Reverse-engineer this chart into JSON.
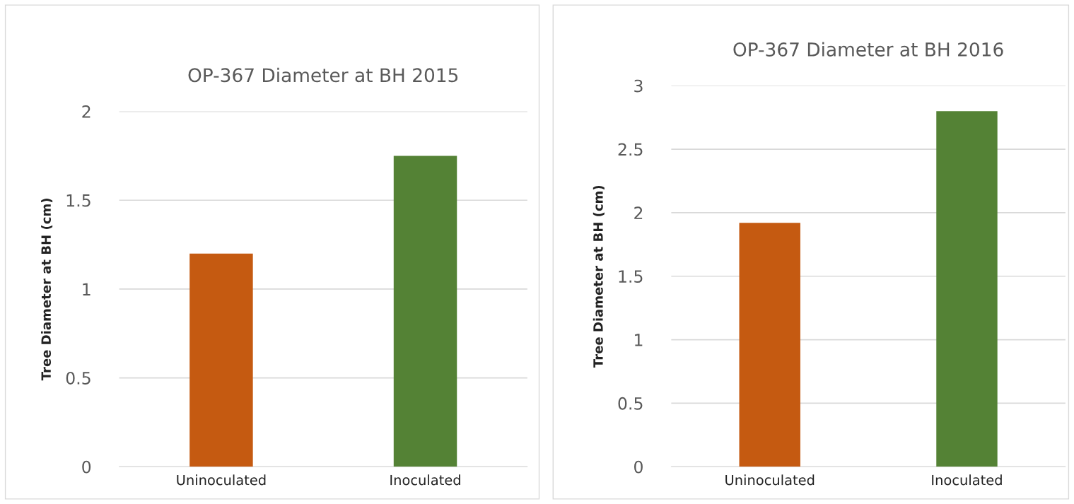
{
  "chart_data": [
    {
      "type": "bar",
      "title": "OP-367 Diameter at BH 2015",
      "ylabel": "Tree Diameter at BH (cm)",
      "categories": [
        "Uninoculated",
        "Inoculated"
      ],
      "values": [
        1.2,
        1.75
      ],
      "colors": [
        "#c55a11",
        "#548235"
      ],
      "ylim": [
        0,
        2
      ],
      "yticks": [
        0,
        0.5,
        1,
        1.5,
        2
      ],
      "grid": "y",
      "legend": false
    },
    {
      "type": "bar",
      "title": "OP-367 Diameter at BH 2016",
      "ylabel": "Tree Diameter at BH (cm)",
      "categories": [
        "Uninoculated",
        "Inoculated"
      ],
      "values": [
        1.92,
        2.8
      ],
      "colors": [
        "#c55a11",
        "#548235"
      ],
      "ylim": [
        0,
        3
      ],
      "yticks": [
        0,
        0.5,
        1,
        1.5,
        2,
        2.5,
        3
      ],
      "grid": "y",
      "legend": false
    }
  ]
}
